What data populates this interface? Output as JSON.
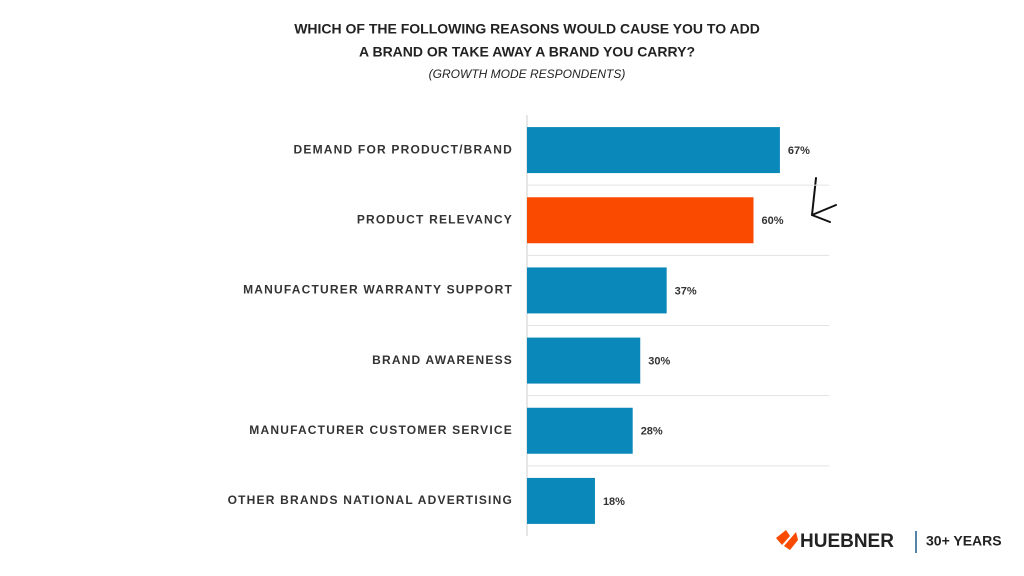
{
  "chart_data": {
    "type": "hbar",
    "title": [
      "WHICH OF THE FOLLOWING REASONS WOULD CAUSE YOU TO ADD",
      "A BRAND OR TAKE AWAY A BRAND YOU CARRY?"
    ],
    "subtitle": "(GROWTH MODE RESPONDENTS)",
    "categories": [
      "DEMAND FOR PRODUCT/BRAND",
      "PRODUCT RELEVANCY",
      "MANUFACTURER WARRANTY SUPPORT",
      "BRAND AWARENESS",
      "MANUFACTURER CUSTOMER SERVICE",
      "OTHER BRANDS NATIONAL ADVERTISING"
    ],
    "values": [
      67,
      60,
      37,
      30,
      28,
      18
    ],
    "value_labels": [
      "67%",
      "60%",
      "37%",
      "30%",
      "28%",
      "18%"
    ],
    "colors": [
      "#0a88b9",
      "#f94a00",
      "#0a88b9",
      "#0a88b9",
      "#0a88b9",
      "#0a88b9"
    ],
    "xlim": [
      0,
      80
    ]
  },
  "logo": {
    "name": "HUEBNER",
    "tagline": "30+ YEARS"
  }
}
